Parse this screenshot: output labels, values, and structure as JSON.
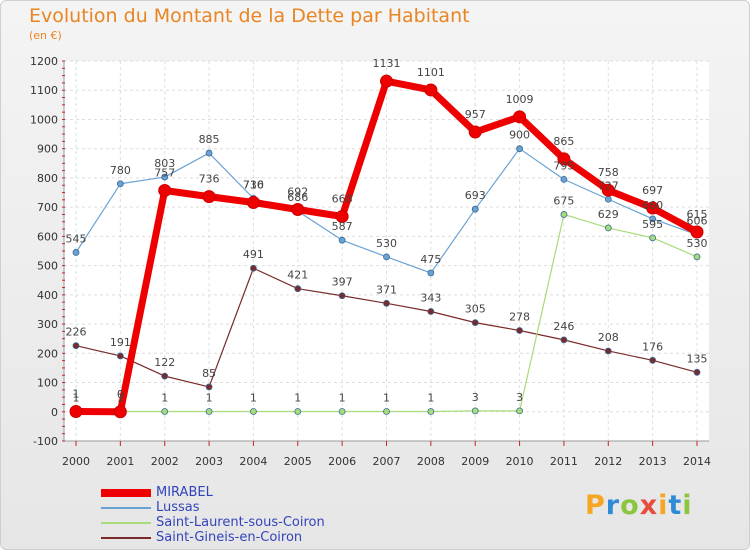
{
  "header": {
    "title": "Evolution du Montant de la Dette par Habitant",
    "subtitle": "(en €)"
  },
  "logo": {
    "letters": [
      "P",
      "r",
      "o",
      "x",
      "i",
      "t",
      "i"
    ],
    "colors": [
      "#f5a623",
      "#2e8bd6",
      "#8cc63f",
      "#e74c3c",
      "#f5a623",
      "#2e8bd6",
      "#8cc63f"
    ]
  },
  "chart_data": {
    "type": "line",
    "title": "Evolution du Montant de la Dette par Habitant",
    "ylabel": "(en €)",
    "x": [
      "2000",
      "2001",
      "2002",
      "2003",
      "2004",
      "2005",
      "2006",
      "2007",
      "2008",
      "2009",
      "2010",
      "2011",
      "2012",
      "2013",
      "2014"
    ],
    "ylim": [
      -100,
      1200
    ],
    "yticks": [
      "-100",
      "0",
      "100",
      "200",
      "300",
      "400",
      "500",
      "600",
      "700",
      "800",
      "900",
      "1000",
      "1100",
      "1200"
    ],
    "grid": true,
    "legend_position": "bottom-left",
    "series": [
      {
        "name": "MIRABEL",
        "color": "#ee0000",
        "values": [
          1,
          0,
          757,
          736,
          716,
          692,
          668,
          1131,
          1101,
          957,
          1009,
          865,
          758,
          697,
          615
        ],
        "labels": [
          "1",
          "0",
          "757",
          "736",
          "716",
          "692",
          "668",
          "1131",
          "1101",
          "957",
          "1009",
          "865",
          "758",
          "697",
          "615"
        ]
      },
      {
        "name": "Lussas",
        "color": "#6aa2d4",
        "values": [
          545,
          780,
          803,
          885,
          730,
          686,
          587,
          530,
          475,
          693,
          900,
          795,
          727,
          660,
          606
        ],
        "labels": [
          "545",
          "780",
          "803",
          "885",
          "730",
          "686",
          "587",
          "530",
          "475",
          "693",
          "900",
          "795",
          "727",
          "660",
          "606"
        ]
      },
      {
        "name": "Saint-Laurent-sous-Coiron",
        "color": "#a6dc7a",
        "values": [
          1,
          1,
          1,
          1,
          1,
          1,
          1,
          1,
          1,
          3,
          3,
          675,
          629,
          595,
          530
        ],
        "labels": [
          "1",
          "1",
          "1",
          "1",
          "1",
          "1",
          "1",
          "1",
          "1",
          "3",
          "3",
          "675",
          "629",
          "595",
          "530"
        ]
      },
      {
        "name": "Saint-Gineis-en-Coiron",
        "color": "#7a2a2a",
        "values": [
          226,
          191,
          122,
          85,
          491,
          421,
          397,
          371,
          343,
          305,
          278,
          246,
          208,
          176,
          135
        ],
        "labels": [
          "226",
          "191",
          "122",
          "85",
          "491",
          "421",
          "397",
          "371",
          "343",
          "305",
          "278",
          "246",
          "208",
          "176",
          "135"
        ]
      }
    ]
  }
}
